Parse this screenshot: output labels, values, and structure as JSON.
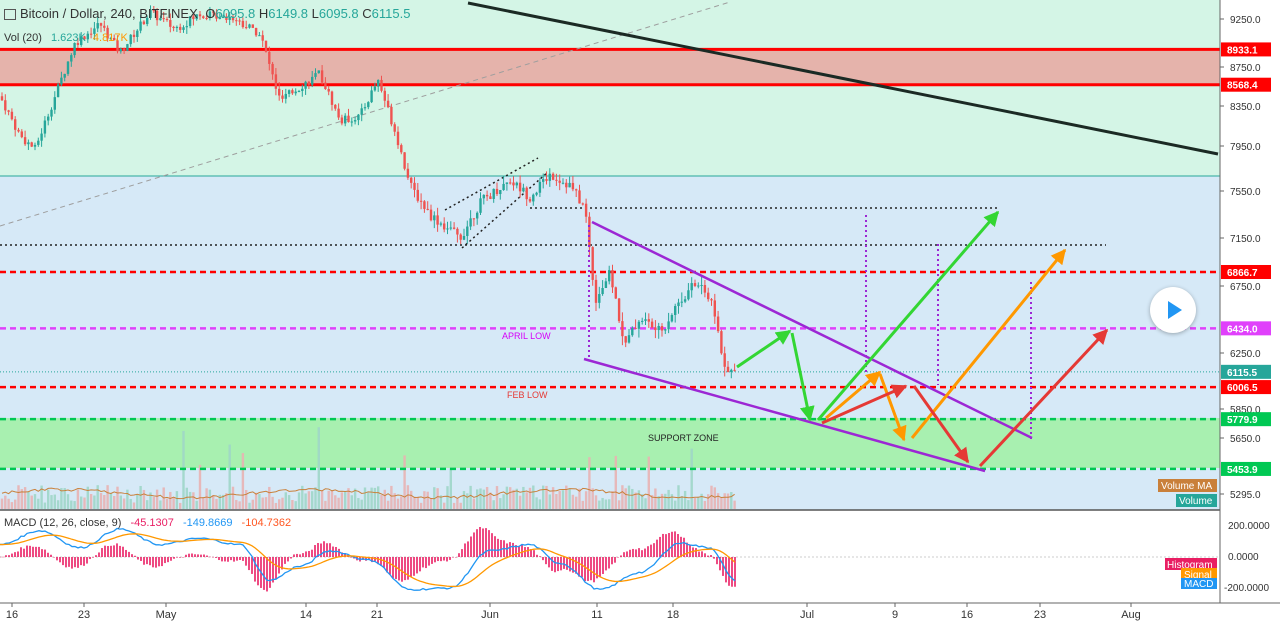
{
  "header": {
    "symbol": "Bitcoin / Dollar, 240, BITFINEX",
    "o_label": "O",
    "o_value": "6095.8",
    "h_label": "H",
    "h_value": "6149.8",
    "l_label": "L",
    "l_value": "6095.8",
    "c_label": "C",
    "c_value": "6115.5"
  },
  "volume": {
    "label": "Vol (20)",
    "v1": "1.623K",
    "v2": "4.817K"
  },
  "macd": {
    "label": "MACD (12, 26, close, 9)",
    "v1": "-45.1307",
    "v2": "-149.8669",
    "v3": "-104.7362"
  },
  "colors": {
    "up": "#26a69a",
    "down": "#ef5350",
    "resistance": "#ff0000",
    "support": "#00c853",
    "channel": "#8e24aa",
    "trend": "#1b2a24"
  },
  "chart_data": {
    "type": "candlestick",
    "title": "",
    "y_axis": {
      "range": [
        5120,
        9350
      ],
      "ticks": [
        9250,
        8750,
        8350,
        7950,
        7550,
        7150,
        6750,
        6250,
        5850,
        5650,
        5295
      ],
      "tick_labels": [
        "9250.0",
        "8750.0",
        "8350.0",
        "7950.0",
        "7550.0",
        "7150.0",
        "6750.0",
        "6250.0",
        "5850.0",
        "5650.0",
        "5295.0"
      ]
    },
    "x_axis": {
      "tick_labels": [
        "16",
        "23",
        "May",
        "14",
        "21",
        "Jun",
        "11",
        "18",
        "Jul",
        "9",
        "16",
        "23",
        "Aug"
      ]
    },
    "price_levels": [
      {
        "label": "8933.1",
        "value": 8933.1,
        "color": "#ff0000",
        "style": "solid"
      },
      {
        "label": "8568.4",
        "value": 8568.4,
        "color": "#ff0000",
        "style": "solid"
      },
      {
        "label": "6866.7",
        "value": 6866.7,
        "color": "#ff0000",
        "style": "dashed"
      },
      {
        "label": "6434.0",
        "value": 6434.0,
        "color": "#e040fb",
        "style": "dashed"
      },
      {
        "label": "6115.5",
        "value": 6115.5,
        "color": "#26a69a",
        "style": "dotted"
      },
      {
        "label": "6006.5",
        "value": 6006.5,
        "color": "#ff0000",
        "style": "dashed"
      },
      {
        "label": "5779.9",
        "value": 5779.9,
        "color": "#00c853",
        "style": "dashed"
      },
      {
        "label": "5453.9",
        "value": 5453.9,
        "color": "#00c853",
        "style": "dashed"
      }
    ],
    "annotations": [
      "APRIL LOW",
      "FEB LOW",
      "SUPPORT ZONE"
    ],
    "legend_labels": [
      "Volume MA",
      "Volume"
    ],
    "macd_ticks": [
      "200.0000",
      "0.0000",
      "-200.0000"
    ],
    "macd_series_labels": [
      "Histogram",
      "Signal",
      "MACD"
    ],
    "price_path": [
      [
        0,
        8450
      ],
      [
        20,
        8050
      ],
      [
        35,
        7920
      ],
      [
        55,
        8450
      ],
      [
        75,
        9000
      ],
      [
        100,
        9200
      ],
      [
        120,
        8900
      ],
      [
        150,
        9320
      ],
      [
        175,
        9150
      ],
      [
        200,
        9300
      ],
      [
        230,
        9280
      ],
      [
        260,
        9100
      ],
      [
        280,
        8400
      ],
      [
        300,
        8550
      ],
      [
        320,
        8680
      ],
      [
        340,
        8200
      ],
      [
        360,
        8250
      ],
      [
        378,
        8620
      ],
      [
        395,
        8100
      ],
      [
        410,
        7600
      ],
      [
        430,
        7350
      ],
      [
        460,
        7150
      ],
      [
        480,
        7450
      ],
      [
        510,
        7650
      ],
      [
        530,
        7500
      ],
      [
        550,
        7700
      ],
      [
        570,
        7600
      ],
      [
        585,
        7400
      ],
      [
        595,
        6650
      ],
      [
        610,
        6850
      ],
      [
        625,
        6300
      ],
      [
        640,
        6520
      ],
      [
        660,
        6400
      ],
      [
        680,
        6650
      ],
      [
        700,
        6800
      ],
      [
        715,
        6550
      ],
      [
        725,
        6100
      ],
      [
        735,
        6115
      ]
    ],
    "macd_path": [
      [
        0,
        80
      ],
      [
        40,
        170
      ],
      [
        80,
        60
      ],
      [
        120,
        180
      ],
      [
        160,
        80
      ],
      [
        200,
        120
      ],
      [
        240,
        80
      ],
      [
        270,
        -150
      ],
      [
        300,
        -60
      ],
      [
        330,
        40
      ],
      [
        370,
        -20
      ],
      [
        410,
        -210
      ],
      [
        450,
        -200
      ],
      [
        490,
        40
      ],
      [
        530,
        80
      ],
      [
        560,
        -40
      ],
      [
        600,
        -210
      ],
      [
        640,
        -100
      ],
      [
        680,
        90
      ],
      [
        710,
        60
      ],
      [
        735,
        -150
      ]
    ]
  }
}
